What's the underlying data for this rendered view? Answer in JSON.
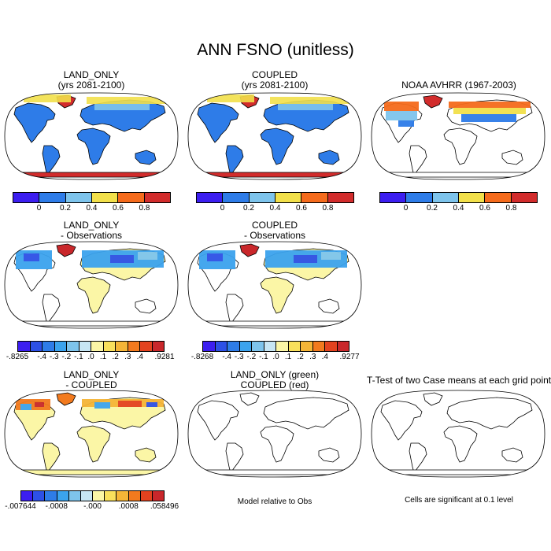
{
  "title": "ANN FSNO (unitless)",
  "panels": {
    "land_only": {
      "line1": "LAND_ONLY",
      "line2": "(yrs 2081-2100)"
    },
    "coupled": {
      "line1": "COUPLED",
      "line2": "(yrs 2081-2100)"
    },
    "noaa": {
      "line1": "NOAA AVHRR (1967-2003)"
    },
    "land_obs": {
      "line1": "LAND_ONLY",
      "line2": "- Observations"
    },
    "coupled_obs": {
      "line1": "COUPLED",
      "line2": "- Observations"
    },
    "land_coupled": {
      "line1": "LAND_ONLY",
      "line2": "- COUPLED"
    },
    "green_red": {
      "line1": "LAND_ONLY (green)",
      "line2": "COUPLED (red)"
    },
    "ttest": {
      "line1": "T-Test of two Case means at each grid point"
    }
  },
  "notes": {
    "model_rel": "Model relative to Obs",
    "cells_sig": "Cells are significant at 0.1 level"
  },
  "colorbars": {
    "abs": {
      "colors": [
        "#3c1ef0",
        "#2e7ce8",
        "#7ec4ec",
        "#f2e04a",
        "#f56b1c",
        "#d22c2c"
      ],
      "ticks": [
        "0",
        "0.2",
        "0.4",
        "0.6",
        "0.8"
      ]
    },
    "diff1": {
      "colors": [
        "#3c1ef0",
        "#2d50e6",
        "#2e7ce8",
        "#3ba3ee",
        "#7ec4ec",
        "#c7e6f4",
        "#fbf6a6",
        "#f9e05c",
        "#f5b537",
        "#f27a1e",
        "#e3421f",
        "#c9272b"
      ],
      "ticks": [
        "-.8265",
        "-.4",
        "-.3",
        "-.2",
        "-.1",
        ".0",
        ".1",
        ".2",
        ".3",
        ".4",
        ".9281"
      ]
    },
    "diff2": {
      "colors": [
        "#3c1ef0",
        "#2d50e6",
        "#2e7ce8",
        "#3ba3ee",
        "#7ec4ec",
        "#c7e6f4",
        "#fbf6a6",
        "#f9e05c",
        "#f5b537",
        "#f27a1e",
        "#e3421f",
        "#c9272b"
      ],
      "ticks": [
        "-.8268",
        "-.4",
        "-.3",
        "-.2",
        "-.1",
        ".0",
        ".1",
        ".2",
        ".3",
        ".4",
        ".9277"
      ]
    },
    "diff3": {
      "colors": [
        "#3c1ef0",
        "#2d50e6",
        "#2e7ce8",
        "#3ba3ee",
        "#7ec4ec",
        "#c7e6f4",
        "#fbf6a6",
        "#f9e05c",
        "#f5b537",
        "#f27a1e",
        "#e3421f",
        "#c9272b"
      ],
      "ticks": [
        "-.007644",
        "-.0008",
        "-.000",
        ".0008",
        ".058496"
      ]
    }
  }
}
